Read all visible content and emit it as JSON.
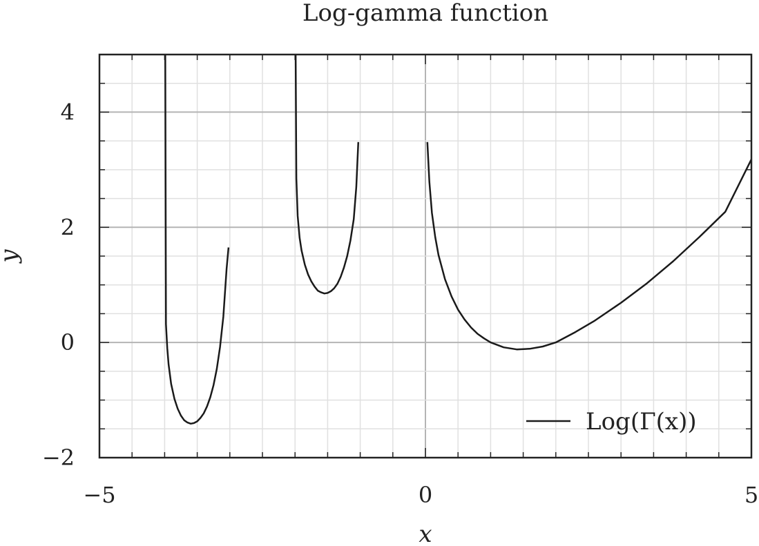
{
  "chart_data": {
    "type": "line",
    "title": "Log-gamma function",
    "xlabel": "x",
    "ylabel": "y",
    "xlim": [
      -5,
      5
    ],
    "ylim": [
      -2,
      5
    ],
    "x_ticks": [
      -5,
      0,
      5
    ],
    "x_tick_labels": [
      "−5",
      "0",
      "5"
    ],
    "y_ticks": [
      -2,
      0,
      2,
      4
    ],
    "y_tick_labels": [
      "−2",
      "0",
      "2",
      "4"
    ],
    "x_minor_step": 0.5,
    "y_minor_step": 0.5,
    "grid": true,
    "legend_position": "bottom-right",
    "colors": {
      "line": "#1a1a1a",
      "grid_major": "#b4b4b4",
      "grid_minor": "#e0e0e0",
      "frame": "#222222"
    },
    "series": [
      {
        "name": "Log(Γ(x))",
        "segments": [
          {
            "x": [
              -3.99,
              -3.98,
              -3.96,
              -3.94,
              -3.9,
              -3.85,
              -3.8,
              -3.75,
              -3.7,
              -3.65,
              -3.6,
              -3.55,
              -3.5,
              -3.45,
              -3.4,
              -3.35,
              -3.3,
              -3.25,
              -3.2,
              -3.15,
              -3.1,
              -3.05,
              -3.02
            ],
            "y": [
              5.0,
              0.32,
              -0.1,
              -0.38,
              -0.72,
              -0.98,
              -1.15,
              -1.27,
              -1.35,
              -1.39,
              -1.41,
              -1.4,
              -1.37,
              -1.31,
              -1.23,
              -1.11,
              -0.95,
              -0.74,
              -0.46,
              -0.08,
              0.45,
              1.28,
              1.65
            ]
          },
          {
            "x": [
              -1.99,
              -1.98,
              -1.96,
              -1.93,
              -1.9,
              -1.85,
              -1.8,
              -1.75,
              -1.7,
              -1.65,
              -1.6,
              -1.55,
              -1.5,
              -1.45,
              -1.4,
              -1.35,
              -1.3,
              -1.25,
              -1.2,
              -1.15,
              -1.1,
              -1.06,
              -1.03
            ],
            "y": [
              5.0,
              2.85,
              2.2,
              1.82,
              1.6,
              1.35,
              1.18,
              1.06,
              0.97,
              0.9,
              0.87,
              0.85,
              0.86,
              0.89,
              0.94,
              1.02,
              1.14,
              1.3,
              1.5,
              1.77,
              2.14,
              2.7,
              3.48
            ]
          },
          {
            "x": [
              0.03,
              0.06,
              0.1,
              0.15,
              0.2,
              0.3,
              0.4,
              0.5,
              0.6,
              0.7,
              0.8,
              0.9,
              1.0,
              1.2,
              1.4,
              1.6,
              1.8,
              2.0,
              2.3,
              2.6,
              3.0,
              3.4,
              3.8,
              4.2,
              4.6,
              5.0
            ],
            "y": [
              3.48,
              2.79,
              2.25,
              1.83,
              1.52,
              1.1,
              0.8,
              0.57,
              0.4,
              0.26,
              0.15,
              0.07,
              0.0,
              -0.085,
              -0.12,
              -0.11,
              -0.07,
              0.0,
              0.18,
              0.38,
              0.69,
              1.03,
              1.41,
              1.83,
              2.27,
              3.18
            ]
          }
        ]
      }
    ]
  }
}
